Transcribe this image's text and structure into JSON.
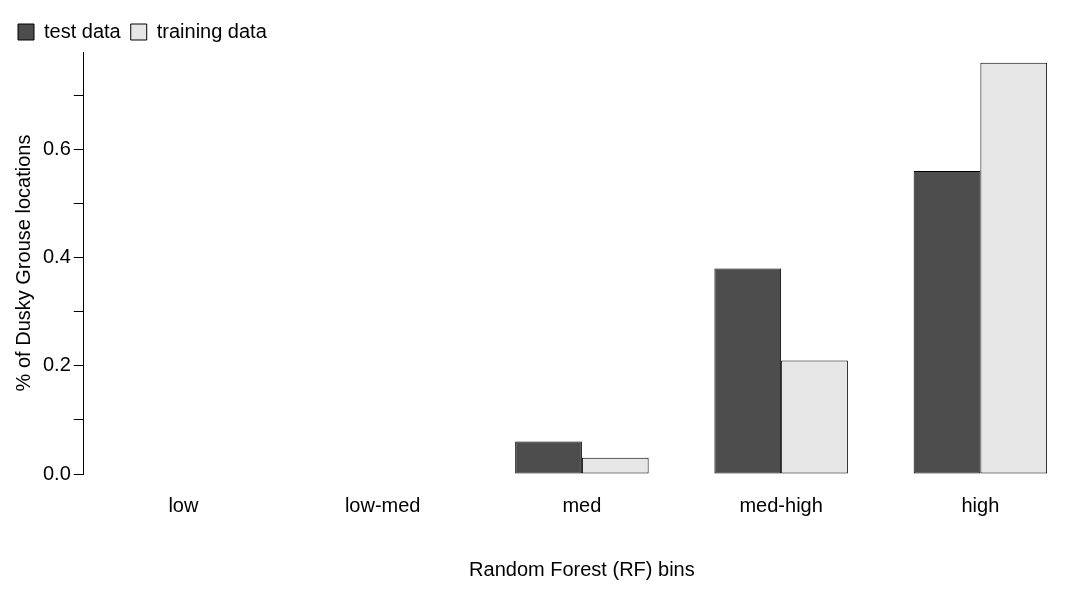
{
  "chart_data": {
    "type": "bar",
    "xlabel": "Random Forest (RF) bins",
    "ylabel": "% of Dusky Grouse locations",
    "categories": [
      "low",
      "low-med",
      "med",
      "med-high",
      "high"
    ],
    "series": [
      {
        "name": "test data",
        "color": "#4d4d4d",
        "values": [
          0,
          0,
          0.06,
          0.38,
          0.56
        ]
      },
      {
        "name": "training data",
        "color": "#e6e6e6",
        "values": [
          0,
          0,
          0.03,
          0.21,
          0.76
        ]
      }
    ],
    "ylim": [
      0,
      0.78
    ],
    "yticks": [
      {
        "value": 0,
        "label": "0.0"
      },
      {
        "value": 0.1,
        "label": null
      },
      {
        "value": 0.2,
        "label": "0.2"
      },
      {
        "value": 0.3,
        "label": null
      },
      {
        "value": 0.4,
        "label": "0.4"
      },
      {
        "value": 0.5,
        "label": null
      },
      {
        "value": 0.6,
        "label": "0.6"
      },
      {
        "value": 0.7,
        "label": null
      }
    ],
    "grid": false,
    "legend": "top left"
  }
}
